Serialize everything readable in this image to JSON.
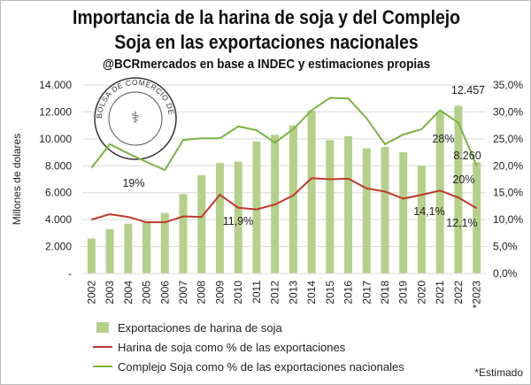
{
  "chart_data": {
    "type": "bar",
    "title": "Importancia de la harina de soja y del Complejo Soja en las exportaciones nacionales",
    "subtitle": "@BCRmercados en base a INDEC y estimaciones propias",
    "ylabel": "Millones de dolares",
    "ylim": [
      0,
      14000
    ],
    "y2lim": [
      0,
      35
    ],
    "yticks": [
      "-",
      "2.000",
      "4.000",
      "6.000",
      "8.000",
      "10.000",
      "12.000",
      "14.000"
    ],
    "y2ticks": [
      "0,0%",
      "5,0%",
      "10,0%",
      "15,0%",
      "20,0%",
      "25,0%",
      "30,0%",
      "35,0%"
    ],
    "categories": [
      "2002",
      "2003",
      "2004",
      "2005",
      "2006",
      "2007",
      "2008",
      "2009",
      "2010",
      "2011",
      "2012",
      "2013",
      "2014",
      "2015",
      "2016",
      "2017",
      "2018",
      "2019",
      "2020",
      "2021",
      "2022",
      "*2023"
    ],
    "series": [
      {
        "name": "Exportaciones de harina de soja",
        "type": "bar",
        "axis": "left",
        "color": "#b5d08a",
        "values": [
          2600,
          3300,
          3700,
          3900,
          4500,
          5900,
          7300,
          8200,
          8300,
          9800,
          10300,
          11000,
          12100,
          9900,
          10200,
          9300,
          9400,
          9000,
          8000,
          12000,
          12457,
          8260
        ]
      },
      {
        "name": "Harina de soja como % de las exportaciones",
        "type": "line",
        "axis": "right",
        "color": "#c0392b",
        "values": [
          10.0,
          11.0,
          10.5,
          9.5,
          9.5,
          10.6,
          10.5,
          14.6,
          12.2,
          11.9,
          12.8,
          14.5,
          17.7,
          17.5,
          17.6,
          15.8,
          15.2,
          13.9,
          14.6,
          15.4,
          14.1,
          12.1
        ]
      },
      {
        "name": "Complejo Soja como % de las exportaciones nacionales",
        "type": "line",
        "axis": "right",
        "color": "#7cb342",
        "values": [
          19.6,
          24.0,
          22.3,
          20.7,
          19.2,
          24.8,
          25.1,
          25.1,
          27.3,
          26.6,
          24.3,
          26.8,
          30.3,
          32.6,
          32.5,
          28.8,
          24.0,
          25.8,
          26.8,
          30.3,
          28.0,
          20.0
        ]
      }
    ],
    "annotations": [
      "19%",
      "11,9%",
      "12.457",
      "28%",
      "8.260",
      "20%",
      "14,1%",
      "12,1%"
    ],
    "footnote": "*Estimado",
    "logo_text": "BOLSA DE COMERCIO DE ROSARIO"
  }
}
